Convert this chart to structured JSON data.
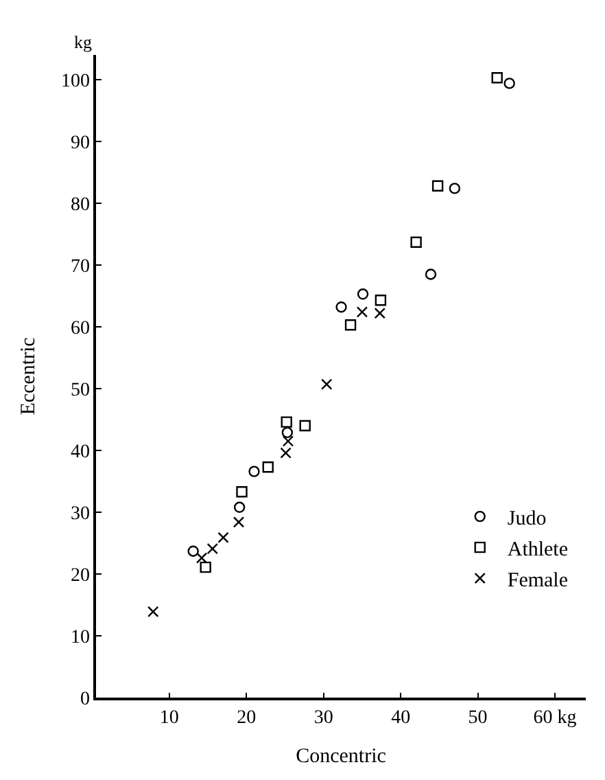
{
  "chart_data": {
    "type": "scatter",
    "xlabel": "Concentric",
    "ylabel": "Eccentric",
    "annotations": [
      "kg"
    ],
    "xlim": [
      0.5,
      64
    ],
    "xticks": [
      10,
      20,
      30,
      40,
      50,
      {
        "value": 60,
        "label": "60 kg"
      }
    ],
    "ylim": [
      0,
      104
    ],
    "yticks": [
      0,
      10,
      20,
      30,
      40,
      50,
      60,
      70,
      80,
      90,
      100
    ],
    "legend": "bottom right",
    "series": [
      {
        "name": "Judo",
        "color": "#000000",
        "marker": "circle",
        "x": [
          13.1,
          19.1,
          21.0,
          25.3,
          32.3,
          35.1,
          43.9,
          47.0,
          54.1
        ],
        "values": [
          23.7,
          30.8,
          36.6,
          42.9,
          63.2,
          65.3,
          68.5,
          82.4,
          99.4
        ]
      },
      {
        "name": "Athlete",
        "color": "#000000",
        "marker": "square",
        "x": [
          14.7,
          19.4,
          22.8,
          25.2,
          27.6,
          33.5,
          37.4,
          42.0,
          44.8,
          52.5
        ],
        "values": [
          21.1,
          33.3,
          37.3,
          44.6,
          44.0,
          60.3,
          64.3,
          73.7,
          82.8,
          100.3
        ]
      },
      {
        "name": "Female",
        "color": "#000000",
        "marker": "cross",
        "x": [
          7.9,
          14.2,
          15.6,
          17.0,
          19.0,
          25.1,
          25.4,
          30.4,
          35.0,
          37.3
        ],
        "values": [
          13.9,
          22.6,
          24.1,
          25.9,
          28.4,
          39.6,
          41.5,
          50.7,
          62.4,
          62.2
        ]
      }
    ]
  }
}
